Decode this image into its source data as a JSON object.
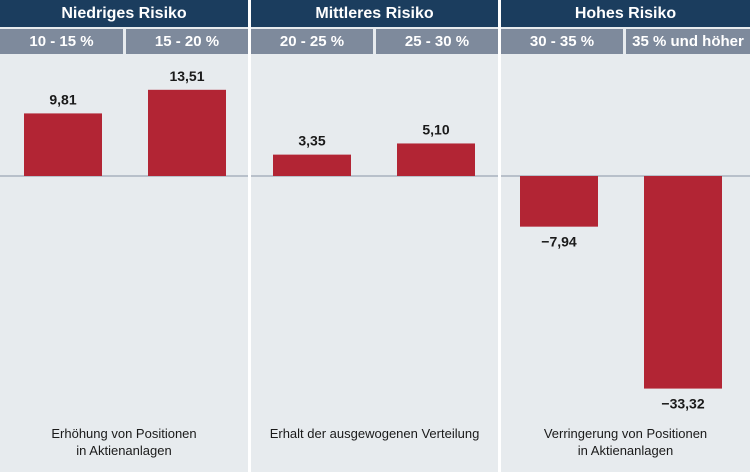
{
  "chart_data": {
    "type": "bar",
    "groups": [
      {
        "title": "Niedriges Risiko",
        "categories": [
          "10 - 15 %",
          "15 - 20 %"
        ],
        "values": [
          9.81,
          13.51
        ],
        "value_labels": [
          "9,81",
          "13,51"
        ],
        "footer": [
          "Erhöhung von Positionen",
          "in Aktienanlagen"
        ]
      },
      {
        "title": "Mittleres Risiko",
        "categories": [
          "20 - 25 %",
          "25 - 30 %"
        ],
        "values": [
          3.35,
          5.1
        ],
        "value_labels": [
          "3,35",
          "5,10"
        ],
        "footer": [
          "Erhalt der ausgewogenen Verteilung",
          ""
        ]
      },
      {
        "title": "Hohes Risiko",
        "categories": [
          "30 - 35 %",
          "35 % und höher"
        ],
        "values": [
          -7.94,
          -33.32
        ],
        "value_labels": [
          "−7,94",
          "−33,32"
        ],
        "footer": [
          "Verringerung von Positionen",
          "in Aktienanlagen"
        ]
      }
    ],
    "ylim": [
      -33.32,
      13.51
    ],
    "grid": false,
    "colors": {
      "bar": "#b22534",
      "panel": "#e7ebee",
      "group_header": "#1b3d5e",
      "category_header": "#7e8a9c",
      "zero_line": "#8a96a6"
    }
  }
}
